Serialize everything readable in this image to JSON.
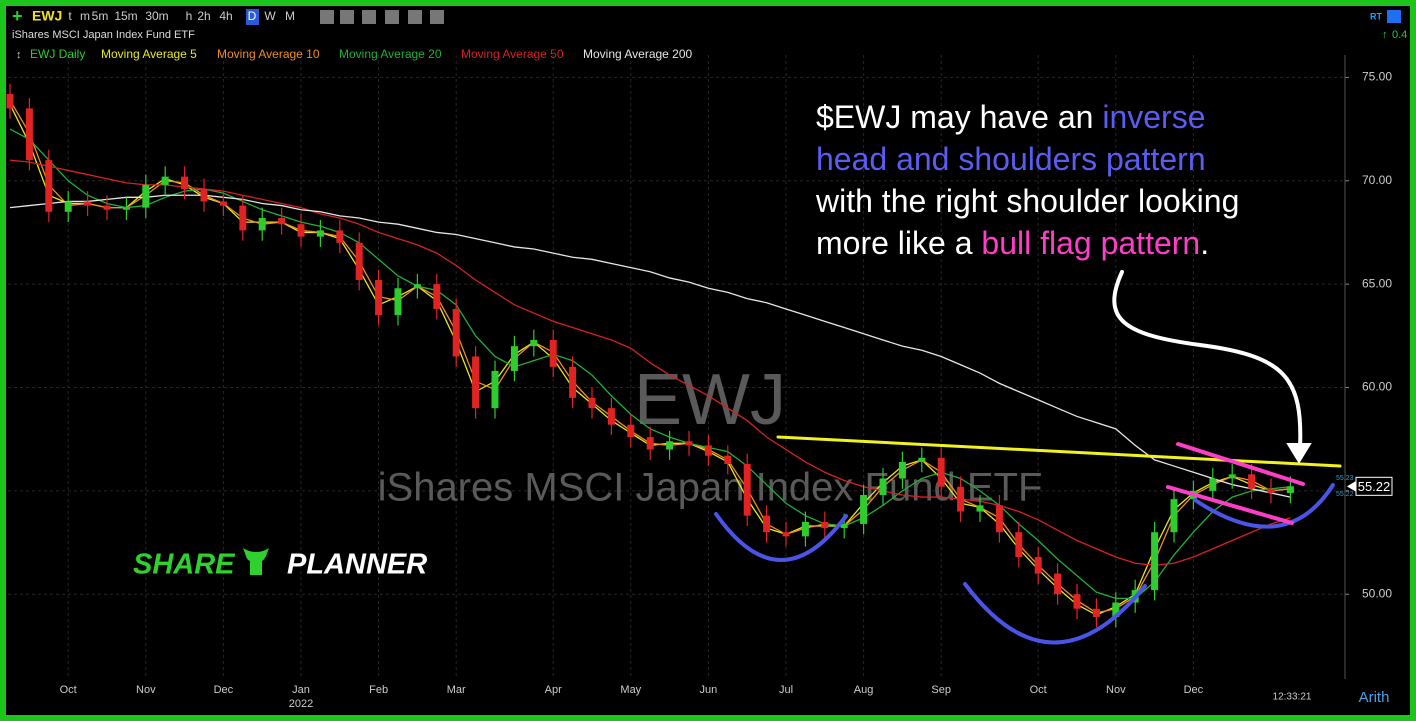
{
  "toolbar": {
    "symbol": "EWJ",
    "name": "iShares MSCI Japan Index Fund ETF",
    "timeframes": [
      "t",
      "m",
      "5m",
      "15m",
      "30m",
      "h",
      "2h",
      "4h",
      "D",
      "W",
      "M"
    ],
    "active_timeframe": "D",
    "realtime": "RT",
    "change": "0.4"
  },
  "status": {
    "time": "12:33:21",
    "scale": "Arith"
  },
  "logo": [
    "SHARE",
    "PLANNER"
  ],
  "chart_data": {
    "type": "candlestick",
    "price_name": "EWJ Daily",
    "price_color": "#2ecc2e",
    "up_color": "#2ecc2e",
    "down_color": "#e02424",
    "watermark_symbol": "EWJ",
    "watermark_name": "iShares MSCI Japan Index Fund ETF",
    "year_label": "2022",
    "year_label_index": 15,
    "categories": [
      null,
      null,
      null,
      "Oct",
      null,
      null,
      null,
      "Nov",
      null,
      null,
      null,
      "Dec",
      null,
      null,
      null,
      "Jan",
      null,
      null,
      null,
      "Feb",
      null,
      null,
      null,
      "Mar",
      null,
      null,
      null,
      null,
      "Apr",
      null,
      null,
      null,
      "May",
      null,
      null,
      null,
      "Jun",
      null,
      null,
      null,
      "Jul",
      null,
      null,
      null,
      "Aug",
      null,
      null,
      null,
      "Sep",
      null,
      null,
      null,
      null,
      "Oct",
      null,
      null,
      null,
      "Nov",
      null,
      null,
      null,
      "Dec",
      null,
      null,
      null,
      null,
      null
    ],
    "open": [
      74.2,
      73.5,
      71.0,
      68.5,
      69.0,
      68.8,
      68.6,
      68.7,
      69.8,
      70.2,
      69.6,
      69.0,
      68.8,
      67.6,
      68.2,
      67.9,
      67.3,
      67.6,
      67.0,
      65.2,
      63.5,
      64.8,
      65.0,
      63.8,
      61.5,
      59.0,
      60.8,
      62.0,
      62.3,
      61.0,
      59.5,
      59.0,
      58.2,
      57.6,
      57.0,
      57.4,
      57.2,
      56.7,
      56.3,
      53.8,
      53.0,
      52.8,
      53.5,
      53.2,
      53.4,
      54.8,
      55.6,
      56.4,
      56.6,
      55.2,
      54.0,
      54.3,
      53.0,
      51.8,
      51.0,
      50.0,
      49.3,
      48.9,
      49.6,
      50.2,
      53.0,
      54.6,
      55.0,
      55.6,
      55.8,
      55.1,
      54.9
    ],
    "high": [
      74.7,
      74.0,
      71.5,
      69.5,
      69.5,
      69.3,
      69.2,
      70.3,
      70.7,
      70.7,
      70.1,
      69.5,
      69.3,
      68.7,
      68.7,
      68.4,
      68.1,
      68.1,
      67.5,
      65.7,
      65.3,
      65.5,
      65.5,
      64.3,
      62.0,
      61.3,
      62.5,
      62.8,
      62.8,
      61.5,
      60.0,
      59.5,
      58.7,
      58.1,
      57.9,
      57.9,
      57.7,
      57.2,
      56.8,
      54.3,
      53.5,
      54.0,
      54.0,
      53.9,
      55.3,
      56.1,
      56.9,
      57.1,
      57.1,
      55.7,
      54.8,
      54.8,
      53.5,
      52.3,
      51.5,
      50.5,
      49.8,
      50.1,
      50.7,
      53.5,
      55.1,
      55.5,
      56.1,
      56.3,
      56.3,
      55.6,
      55.7
    ],
    "low": [
      73.0,
      70.5,
      68.0,
      68.0,
      68.3,
      68.1,
      68.1,
      68.2,
      69.3,
      69.1,
      68.5,
      68.3,
      67.1,
      67.1,
      67.4,
      66.8,
      66.8,
      66.5,
      64.7,
      63.0,
      63.0,
      64.3,
      63.3,
      61.0,
      58.5,
      58.5,
      60.3,
      61.5,
      60.5,
      59.0,
      58.5,
      57.7,
      57.1,
      56.5,
      56.5,
      56.7,
      56.2,
      55.8,
      53.3,
      52.5,
      52.3,
      52.3,
      52.7,
      52.7,
      52.9,
      54.3,
      55.1,
      55.9,
      54.7,
      53.5,
      53.5,
      52.5,
      51.3,
      50.5,
      49.5,
      48.8,
      48.4,
      48.4,
      49.1,
      49.7,
      52.5,
      54.1,
      54.5,
      55.1,
      54.6,
      54.4,
      54.4
    ],
    "close": [
      73.5,
      71.0,
      68.5,
      69.0,
      68.8,
      68.6,
      68.7,
      69.8,
      70.2,
      69.6,
      69.0,
      68.8,
      67.6,
      68.2,
      67.9,
      67.3,
      67.6,
      67.0,
      65.2,
      63.5,
      64.8,
      65.0,
      63.8,
      61.5,
      59.0,
      60.8,
      62.0,
      62.3,
      61.0,
      59.5,
      59.0,
      58.2,
      57.6,
      57.0,
      57.4,
      57.2,
      56.7,
      56.3,
      53.8,
      53.0,
      52.8,
      53.5,
      53.2,
      53.4,
      54.8,
      55.6,
      56.4,
      56.6,
      55.2,
      54.0,
      54.3,
      53.0,
      51.8,
      51.0,
      50.0,
      49.3,
      48.9,
      49.6,
      50.2,
      53.0,
      54.6,
      55.0,
      55.6,
      55.8,
      55.1,
      54.9,
      55.22
    ],
    "side_price_labels": [
      55.23,
      55.22
    ],
    "series": [
      {
        "name": "Moving Average 5",
        "color": "#e8e81e",
        "values": [
          73.7,
          71.8,
          69.3,
          68.9,
          68.9,
          68.7,
          68.7,
          69.5,
          70.1,
          69.8,
          69.2,
          68.9,
          68.0,
          68.0,
          68.0,
          67.5,
          67.5,
          67.2,
          65.7,
          64.0,
          64.4,
          64.9,
          64.2,
          62.2,
          59.8,
          60.3,
          61.6,
          62.2,
          61.4,
          60.0,
          59.2,
          58.4,
          57.8,
          57.2,
          57.3,
          57.3,
          56.9,
          56.4,
          54.6,
          53.2,
          52.9,
          53.3,
          53.3,
          53.3,
          54.4,
          55.4,
          56.2,
          56.5,
          55.6,
          54.4,
          54.2,
          53.4,
          52.2,
          51.2,
          50.3,
          49.5,
          49.0,
          49.4,
          50.0,
          52.2,
          54.1,
          54.9,
          55.4,
          55.7,
          55.3,
          55.0,
          55.1
        ]
      },
      {
        "name": "Moving Average 10",
        "color": "#f28c1e",
        "values": [
          73.9,
          72.3,
          69.8,
          68.8,
          68.9,
          68.7,
          68.7,
          69.3,
          70.0,
          69.9,
          69.3,
          68.9,
          68.2,
          67.9,
          68.0,
          67.6,
          67.5,
          67.3,
          66.1,
          64.4,
          64.2,
          64.9,
          64.4,
          62.7,
          60.3,
          59.9,
          61.4,
          62.2,
          61.7,
          60.3,
          59.3,
          58.6,
          57.9,
          57.3,
          57.2,
          57.3,
          57.0,
          56.5,
          55.1,
          53.4,
          52.9,
          53.2,
          53.4,
          53.3,
          54.1,
          55.2,
          56.0,
          56.5,
          55.9,
          54.6,
          54.2,
          53.7,
          52.4,
          51.4,
          50.5,
          49.7,
          49.1,
          49.3,
          49.9,
          51.6,
          53.8,
          54.8,
          55.3,
          55.7,
          55.5,
          55.0,
          55.1
        ]
      },
      {
        "name": "Moving Average 20",
        "color": "#1faf3a",
        "values": [
          72.5,
          72.0,
          71.0,
          70.0,
          69.3,
          68.9,
          68.7,
          68.8,
          69.2,
          69.5,
          69.6,
          69.4,
          69.0,
          68.6,
          68.3,
          68.0,
          67.8,
          67.5,
          67.0,
          66.2,
          65.4,
          64.9,
          64.7,
          64.0,
          62.5,
          61.5,
          61.0,
          61.3,
          61.6,
          61.3,
          60.6,
          59.6,
          58.7,
          58.0,
          57.6,
          57.3,
          57.1,
          56.9,
          56.2,
          55.3,
          54.4,
          53.8,
          53.4,
          53.3,
          53.7,
          54.3,
          55.0,
          55.6,
          55.9,
          55.6,
          55.0,
          54.3,
          53.4,
          52.6,
          51.7,
          50.9,
          50.1,
          49.8,
          49.8,
          50.6,
          51.9,
          53.0,
          54.0,
          54.7,
          55.0,
          55.1,
          55.2
        ]
      },
      {
        "name": "Moving Average 50",
        "color": "#d42222",
        "values": [
          71.0,
          70.9,
          70.7,
          70.5,
          70.3,
          70.1,
          69.9,
          69.8,
          69.8,
          69.7,
          69.6,
          69.5,
          69.3,
          69.1,
          68.9,
          68.7,
          68.4,
          68.2,
          67.9,
          67.5,
          67.2,
          66.9,
          66.5,
          65.9,
          65.2,
          64.6,
          64.0,
          63.6,
          63.2,
          62.9,
          62.6,
          62.3,
          61.9,
          61.2,
          60.6,
          60.1,
          59.6,
          59.0,
          58.4,
          57.6,
          57.0,
          56.4,
          55.9,
          55.5,
          55.2,
          55.0,
          54.8,
          54.7,
          54.7,
          54.6,
          54.5,
          54.3,
          54.0,
          53.6,
          53.1,
          52.6,
          52.2,
          51.8,
          51.5,
          51.4,
          51.5,
          51.8,
          52.2,
          52.6,
          53.0,
          53.4,
          53.7
        ]
      },
      {
        "name": "Moving Average 200",
        "color": "#e6e6e6",
        "values": [
          68.7,
          68.8,
          68.9,
          69.0,
          69.0,
          69.1,
          69.2,
          69.2,
          69.3,
          69.3,
          69.3,
          69.2,
          69.1,
          68.9,
          68.8,
          68.6,
          68.5,
          68.3,
          68.2,
          68.0,
          67.9,
          67.7,
          67.5,
          67.4,
          67.2,
          67.0,
          66.8,
          66.7,
          66.5,
          66.3,
          66.2,
          66.0,
          65.8,
          65.6,
          65.3,
          65.1,
          64.8,
          64.6,
          64.3,
          64.1,
          63.8,
          63.5,
          63.2,
          62.9,
          62.6,
          62.3,
          62.0,
          61.8,
          61.5,
          61.1,
          60.7,
          60.2,
          59.8,
          59.4,
          59.0,
          58.6,
          58.3,
          58.0,
          57.2,
          56.5,
          56.2,
          55.9,
          55.6,
          55.3,
          55.1,
          54.9,
          54.7
        ]
      }
    ],
    "ylim": [
      45.9,
      75.6
    ],
    "yticks": [
      {
        "value": 50,
        "label": "50.00"
      },
      {
        "value": 55,
        "label": "55.00"
      },
      {
        "value": 60,
        "label": "60.00"
      },
      {
        "value": 65,
        "label": "65.00"
      },
      {
        "value": 70,
        "label": "70.00"
      },
      {
        "value": 75,
        "label": "75.00"
      }
    ],
    "grid": true,
    "annotation": [
      [
        {
          "text": "$EWJ may have an ",
          "color": "#ffffff"
        },
        {
          "text": "inverse",
          "color": "#5a5cf2"
        }
      ],
      [
        {
          "text": "head and shoulders pattern",
          "color": "#5a5cf2"
        }
      ],
      [
        {
          "text": "with the right shoulder looking",
          "color": "#ffffff"
        }
      ],
      [
        {
          "text": "more like a ",
          "color": "#ffffff"
        },
        {
          "text": "bull flag pattern",
          "color": "#ff3ec8"
        },
        {
          "text": ".",
          "color": "#ffffff"
        }
      ]
    ]
  }
}
